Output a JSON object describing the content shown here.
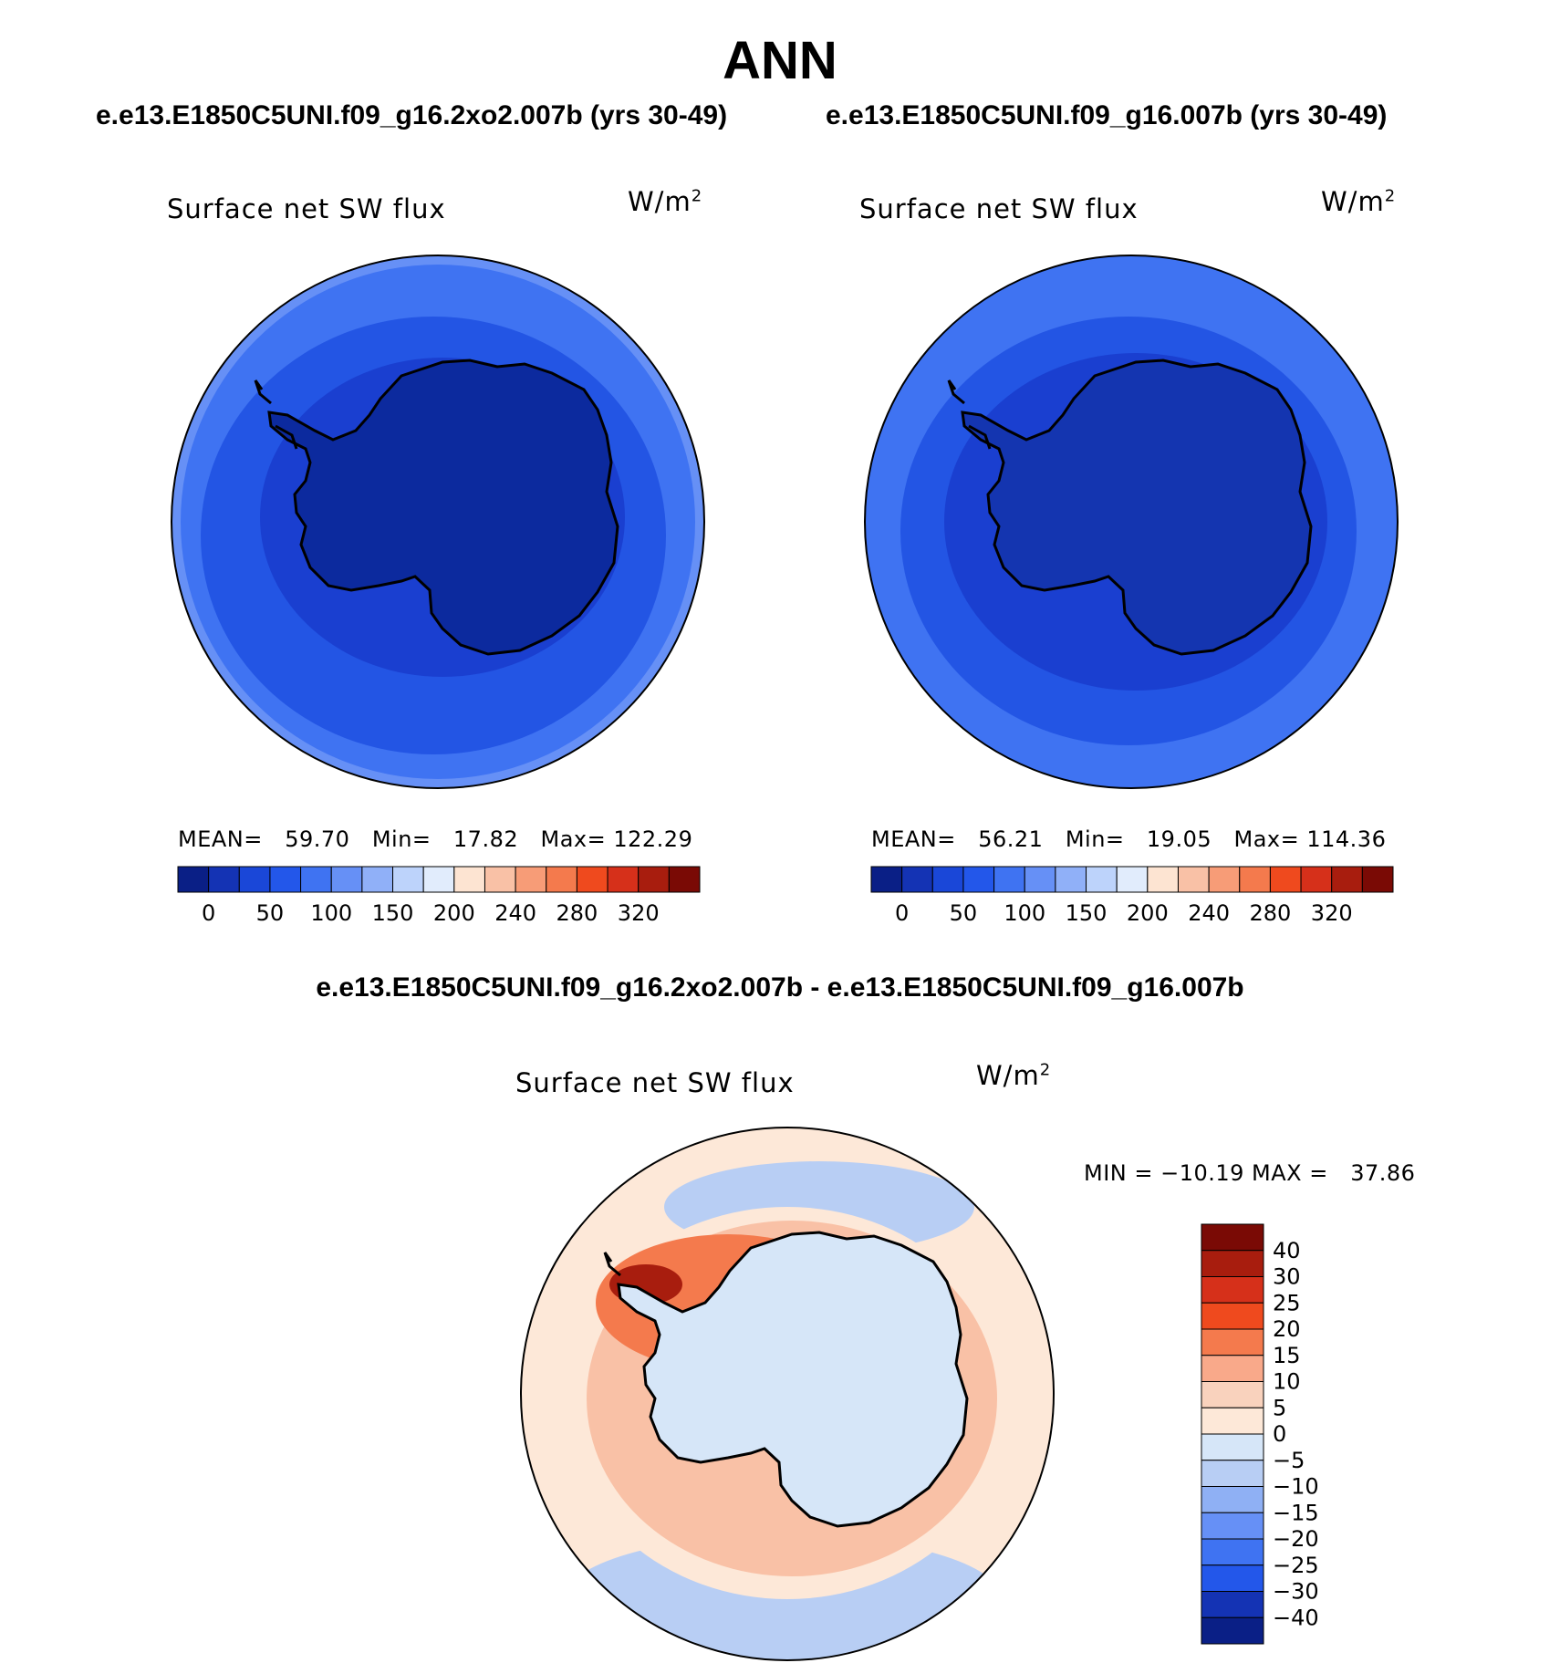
{
  "title": "ANN",
  "panels": [
    {
      "case_title": "e.e13.E1850C5UNI.f09_g16.2xo2.007b (yrs 30-49)",
      "variable": "Surface net SW flux",
      "units_base": "W/m",
      "units_exp": "2",
      "stats": "MEAN=   59.70   Min=   17.82   Max= 122.29",
      "mean": 59.7,
      "min": 17.82,
      "max": 122.29
    },
    {
      "case_title": "e.e13.E1850C5UNI.f09_g16.007b (yrs 30-49)",
      "variable": "Surface net SW flux",
      "units_base": "W/m",
      "units_exp": "2",
      "stats": "MEAN=   56.21   Min=   19.05   Max= 114.36",
      "mean": 56.21,
      "min": 19.05,
      "max": 114.36
    }
  ],
  "diff": {
    "title": "e.e13.E1850C5UNI.f09_g16.2xo2.007b - e.e13.E1850C5UNI.f09_g16.007b",
    "variable": "Surface net SW flux",
    "units_base": "W/m",
    "units_exp": "2",
    "stats": "MIN = −10.19 MAX =   37.86",
    "min": -10.19,
    "max": 37.86
  },
  "colorbar_top": {
    "colors": [
      "#0a1f86",
      "#1433b4",
      "#1a47d8",
      "#2357ea",
      "#3f73f2",
      "#6690f6",
      "#90b0f8",
      "#bdd3fb",
      "#e1ecfc",
      "#fde4d2",
      "#f9c1a6",
      "#f79c77",
      "#f47a4d",
      "#ef4a1e",
      "#d6301a",
      "#a81d0e",
      "#7a0a05"
    ],
    "labels": [
      "0",
      "50",
      "100",
      "150",
      "200",
      "240",
      "280",
      "320"
    ]
  },
  "colorbar_diff": {
    "colors": [
      "#7a0a05",
      "#a81d0e",
      "#d6301a",
      "#ef4a1e",
      "#f47a4d",
      "#f9a98a",
      "#f9d2bd",
      "#fde8d8",
      "#d6e6f8",
      "#b8cef4",
      "#8fb0f4",
      "#6690f6",
      "#3f73f2",
      "#2357ea",
      "#1433b4",
      "#0a1f86"
    ],
    "labels": [
      "40",
      "30",
      "25",
      "20",
      "15",
      "10",
      "5",
      "0",
      "−5",
      "−10",
      "−15",
      "−20",
      "−25",
      "−30",
      "−40"
    ]
  },
  "colors": {
    "land": "#0c2a9e",
    "land_right": "#1435b0",
    "ocean_inner": "#1a3fd0",
    "ocean_mid": "#2355e4",
    "ocean_outer": "#3f73f2",
    "ocean_edge": "#6690f6",
    "diff_land": "#d6e6f8",
    "diff_outer": "#fde8d8",
    "diff_ring1": "#f9c1a6",
    "diff_ring2": "#f47a4d",
    "diff_hot": "#a81d0e",
    "diff_blue": "#b8cef4"
  }
}
